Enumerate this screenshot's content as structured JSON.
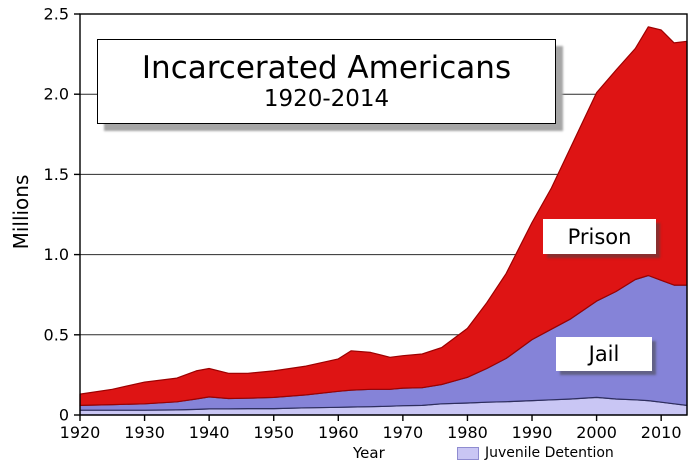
{
  "chart_data": {
    "type": "area",
    "stacked": true,
    "title": "Incarcerated Americans",
    "subtitle": "1920-2014",
    "xlabel": "Year",
    "ylabel": "Millions",
    "xlim": [
      1920,
      2014
    ],
    "ylim": [
      0,
      2.5
    ],
    "grid": true,
    "legend_position": "bottom",
    "xticks": [
      1920,
      1930,
      1940,
      1950,
      1960,
      1970,
      1980,
      1990,
      2000,
      2010
    ],
    "xtick_labels": [
      "1920",
      "1930",
      "1940",
      "1950",
      "1960",
      "1970",
      "1980",
      "1990",
      "2000",
      "2010"
    ],
    "yticks": [
      0,
      0.5,
      1.0,
      1.5,
      2.0,
      2.5
    ],
    "ytick_labels": [
      "0",
      "0.5",
      "1.0",
      "1.5",
      "2.0",
      "2.5"
    ],
    "x": [
      1920,
      1925,
      1930,
      1935,
      1938,
      1940,
      1943,
      1946,
      1950,
      1955,
      1960,
      1962,
      1965,
      1968,
      1970,
      1973,
      1976,
      1980,
      1983,
      1986,
      1990,
      1993,
      1996,
      2000,
      2003,
      2006,
      2008,
      2010,
      2012,
      2014
    ],
    "series": [
      {
        "name": "Juvenile Detention",
        "fill": "#c9c6f4",
        "stroke": "#3a3a6e",
        "values": [
          0.03,
          0.03,
          0.03,
          0.032,
          0.035,
          0.038,
          0.038,
          0.04,
          0.04,
          0.045,
          0.048,
          0.05,
          0.052,
          0.055,
          0.058,
          0.06,
          0.07,
          0.075,
          0.08,
          0.083,
          0.09,
          0.095,
          0.1,
          0.11,
          0.1,
          0.095,
          0.09,
          0.08,
          0.07,
          0.06
        ]
      },
      {
        "name": "Jail",
        "fill": "#8583d8",
        "stroke": "#2e2e5e",
        "values": [
          0.03,
          0.035,
          0.04,
          0.05,
          0.065,
          0.075,
          0.065,
          0.065,
          0.07,
          0.08,
          0.1,
          0.105,
          0.108,
          0.105,
          0.11,
          0.11,
          0.12,
          0.16,
          0.21,
          0.27,
          0.38,
          0.44,
          0.5,
          0.6,
          0.67,
          0.75,
          0.78,
          0.76,
          0.74,
          0.75
        ]
      },
      {
        "name": "Prison",
        "fill": "#de1414",
        "stroke": "#9c0000",
        "values": [
          0.07,
          0.095,
          0.135,
          0.148,
          0.175,
          0.177,
          0.157,
          0.155,
          0.165,
          0.18,
          0.202,
          0.245,
          0.23,
          0.2,
          0.202,
          0.21,
          0.23,
          0.305,
          0.41,
          0.53,
          0.73,
          0.88,
          1.07,
          1.3,
          1.38,
          1.44,
          1.55,
          1.56,
          1.51,
          1.52
        ]
      }
    ],
    "colors": {
      "prison": "#de1414",
      "jail": "#8583d8",
      "juvenile_detention": "#c9c6f4",
      "grid": "#2b2b2b",
      "axis": "#000000"
    }
  }
}
